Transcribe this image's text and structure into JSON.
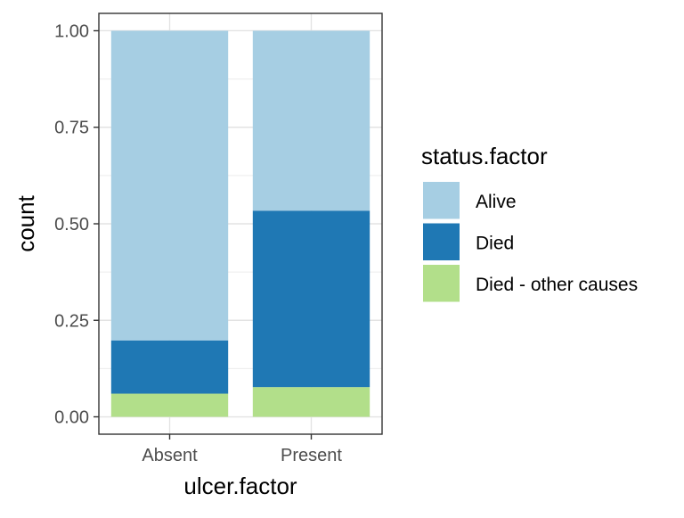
{
  "chart_data": {
    "type": "bar",
    "stacked": true,
    "categories": [
      "Absent",
      "Present"
    ],
    "series": [
      {
        "name": "Died - other causes",
        "values": [
          0.06,
          0.077
        ],
        "color": "#B2DF8A"
      },
      {
        "name": "Died",
        "values": [
          0.138,
          0.457
        ],
        "color": "#1F78B4"
      },
      {
        "name": "Alive",
        "values": [
          0.802,
          0.466
        ],
        "color": "#A6CEE3"
      }
    ],
    "title": "",
    "xlabel": "ulcer.factor",
    "ylabel": "count",
    "ylim": [
      -0.045,
      1.045
    ],
    "yticks": [
      0,
      0.25,
      0.5,
      0.75,
      1
    ],
    "ytick_labels": [
      "0.00",
      "0.25",
      "0.50",
      "0.75",
      "1.00"
    ],
    "grid": true,
    "legend": {
      "title": "status.factor",
      "placement": "right",
      "entries": [
        {
          "label": "Alive",
          "color": "#A6CEE3"
        },
        {
          "label": "Died",
          "color": "#1F78B4"
        },
        {
          "label": "Died - other causes",
          "color": "#B2DF8A"
        }
      ]
    }
  }
}
